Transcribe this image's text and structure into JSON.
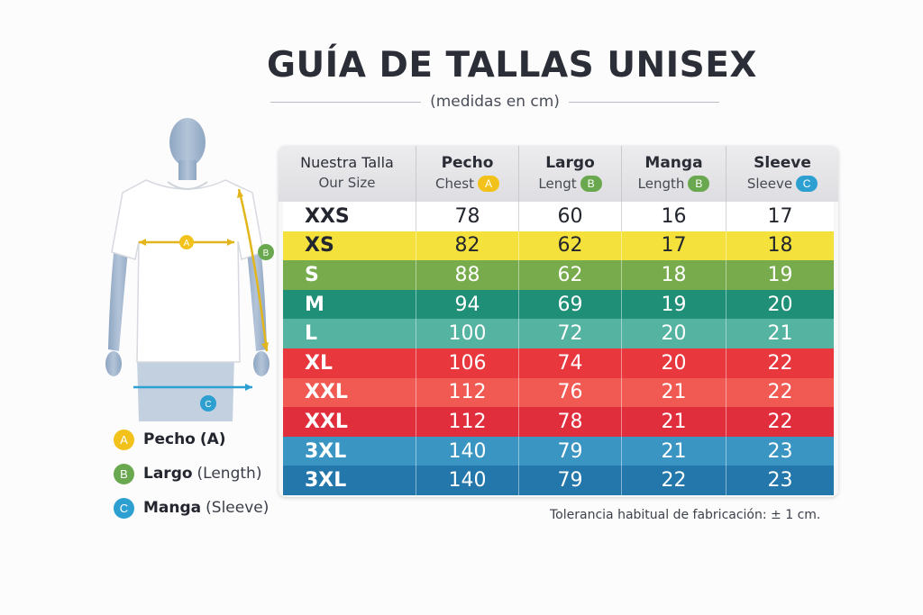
{
  "header": {
    "title": "GUÍA DE TALLAS UNISEX",
    "subtitle": "(medidas en cm)"
  },
  "figure": {
    "label_a": "A",
    "label_b": "B",
    "label_c": "C"
  },
  "legend": [
    {
      "badge": "A",
      "name": "Pecho",
      "note": "(A)",
      "color": "#f2c21b"
    },
    {
      "badge": "B",
      "name": "Largo",
      "note": "(Length)",
      "color": "#6aa84f"
    },
    {
      "badge": "C",
      "name": "Manga",
      "note": "(Sleeve)",
      "color": "#2d9fd0"
    }
  ],
  "table": {
    "columns": [
      {
        "title": "Nuestra Talla",
        "sub": "Our Size",
        "badge": ""
      },
      {
        "title": "Pecho",
        "sub": "Chest",
        "badge": "A"
      },
      {
        "title": "Largo",
        "sub": "Lengt",
        "badge": "B"
      },
      {
        "title": "Manga",
        "sub": "Length",
        "badge": "B"
      },
      {
        "title": "Sleeve",
        "sub": "Sleeve",
        "badge": "C"
      }
    ],
    "rows": [
      {
        "size": "XXS",
        "chest": "78",
        "length": "60",
        "manga": "16",
        "sleeve": "17",
        "color": "#ffffff"
      },
      {
        "size": "XS",
        "chest": "82",
        "length": "62",
        "manga": "17",
        "sleeve": "18",
        "color": "#f5e13c"
      },
      {
        "size": "S",
        "chest": "88",
        "length": "62",
        "manga": "18",
        "sleeve": "19",
        "color": "#77ab4c"
      },
      {
        "size": "M",
        "chest": "94",
        "length": "69",
        "manga": "19",
        "sleeve": "20",
        "color": "#1f8f78"
      },
      {
        "size": "L",
        "chest": "100",
        "length": "72",
        "manga": "20",
        "sleeve": "21",
        "color": "#55b3a1"
      },
      {
        "size": "XL",
        "chest": "106",
        "length": "74",
        "manga": "20",
        "sleeve": "22",
        "color": "#e8373d"
      },
      {
        "size": "XXL",
        "chest": "112",
        "length": "76",
        "manga": "21",
        "sleeve": "22",
        "color": "#f15a52"
      },
      {
        "size": "XXL",
        "chest": "112",
        "length": "78",
        "manga": "21",
        "sleeve": "22",
        "color": "#e02e3c"
      },
      {
        "size": "3XL",
        "chest": "140",
        "length": "79",
        "manga": "21",
        "sleeve": "23",
        "color": "#3a95c2"
      },
      {
        "size": "3XL",
        "chest": "140",
        "length": "79",
        "manga": "22",
        "sleeve": "23",
        "color": "#2477ab"
      }
    ]
  },
  "footer": {
    "tolerance": "Tolerancia habitual de fabricación: ± 1 cm."
  },
  "colors": {
    "badge_a": "#f2c21b",
    "badge_b": "#6aa84f",
    "badge_c": "#2d9fd0",
    "mannequin": "#9fb4cd"
  },
  "icons": [
    "mannequin-tshirt-illustration"
  ]
}
